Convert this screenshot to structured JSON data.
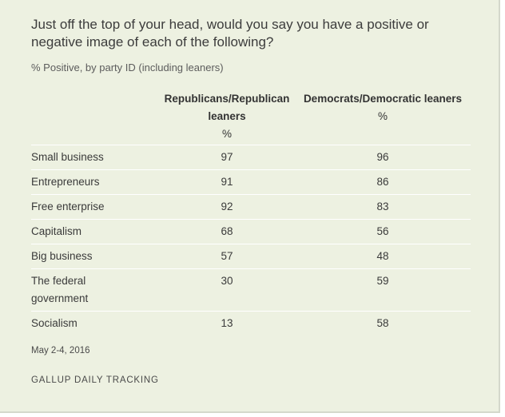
{
  "chart_data": {
    "type": "table",
    "title": "Just off the top of your head, would you say you have a positive or negative image of each of the following?",
    "subtitle": "% Positive, by party ID (including leaners)",
    "columns": [
      {
        "name": "Republicans/Republican leaners",
        "unit": "%"
      },
      {
        "name": "Democrats/Democratic leaners",
        "unit": "%"
      }
    ],
    "rows": [
      {
        "label": "Small business",
        "values": [
          97,
          96
        ]
      },
      {
        "label": "Entrepreneurs",
        "values": [
          91,
          86
        ]
      },
      {
        "label": "Free enterprise",
        "values": [
          92,
          83
        ]
      },
      {
        "label": "Capitalism",
        "values": [
          68,
          56
        ]
      },
      {
        "label": "Big business",
        "values": [
          57,
          48
        ]
      },
      {
        "label": "The federal government",
        "values": [
          30,
          59
        ]
      },
      {
        "label": "Socialism",
        "values": [
          13,
          58
        ]
      }
    ],
    "note": "May 2-4, 2016",
    "source": "GALLUP DAILY TRACKING"
  },
  "colors": {
    "background": "#edf1e1",
    "row_divider": "#ffffff",
    "text": "#333333"
  }
}
